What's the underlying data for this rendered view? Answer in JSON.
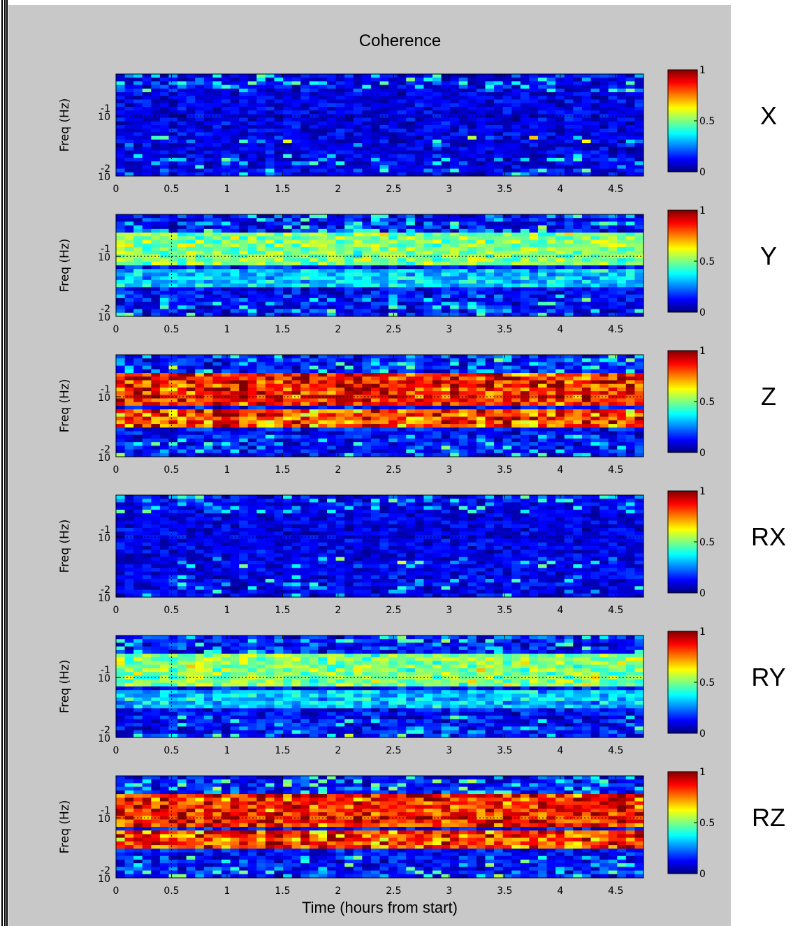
{
  "figure": {
    "title": "Coherence",
    "xlabel": "Time (hours from start)"
  },
  "chart_data": [
    {
      "type": "heatmap",
      "row_label": "X",
      "title": "",
      "xlabel": "",
      "ylabel": "Freq (Hz)",
      "xlim": [
        0,
        4.75
      ],
      "ylim": [
        0.01,
        0.5
      ],
      "yscale": "log",
      "xticks": [
        "0",
        "0.5",
        "1",
        "1.5",
        "2",
        "2.5",
        "3",
        "3.5",
        "4",
        "4.5"
      ],
      "yticks": [
        {
          "base": "10",
          "exp": "-2"
        },
        {
          "base": "10",
          "exp": "-1"
        }
      ],
      "colorbar": {
        "ticks": [
          "0",
          "0.5",
          "1"
        ],
        "range": [
          0,
          1
        ],
        "colormap": "jet"
      },
      "profile": {
        "broadband": 0.15,
        "band_low": 0.0,
        "band_high": 0.0,
        "seed": 3
      }
    },
    {
      "type": "heatmap",
      "row_label": "Y",
      "title": "",
      "xlabel": "",
      "ylabel": "Freq (Hz)",
      "xlim": [
        0,
        4.75
      ],
      "ylim": [
        0.01,
        0.5
      ],
      "yscale": "log",
      "xticks": [
        "0",
        "0.5",
        "1",
        "1.5",
        "2",
        "2.5",
        "3",
        "3.5",
        "4",
        "4.5"
      ],
      "yticks": [
        {
          "base": "10",
          "exp": "-2"
        },
        {
          "base": "10",
          "exp": "-1"
        }
      ],
      "colorbar": {
        "ticks": [
          "0",
          "0.5",
          "1"
        ],
        "range": [
          0,
          1
        ],
        "colormap": "jet"
      },
      "profile": {
        "broadband": 0.2,
        "band_low": 0.25,
        "band_high": 0.45,
        "seed": 7
      }
    },
    {
      "type": "heatmap",
      "row_label": "Z",
      "title": "",
      "xlabel": "",
      "ylabel": "Freq (Hz)",
      "xlim": [
        0,
        4.75
      ],
      "ylim": [
        0.01,
        0.5
      ],
      "yscale": "log",
      "xticks": [
        "0",
        "0.5",
        "1",
        "1.5",
        "2",
        "2.5",
        "3",
        "3.5",
        "4",
        "4.5"
      ],
      "yticks": [
        {
          "base": "10",
          "exp": "-2"
        },
        {
          "base": "10",
          "exp": "-1"
        }
      ],
      "colorbar": {
        "ticks": [
          "0",
          "0.5",
          "1"
        ],
        "range": [
          0,
          1
        ],
        "colormap": "jet"
      },
      "profile": {
        "broadband": 0.2,
        "band_low": 0.85,
        "band_high": 0.85,
        "seed": 11
      }
    },
    {
      "type": "heatmap",
      "row_label": "RX",
      "title": "",
      "xlabel": "",
      "ylabel": "Freq (Hz)",
      "xlim": [
        0,
        4.75
      ],
      "ylim": [
        0.01,
        0.5
      ],
      "yscale": "log",
      "xticks": [
        "0",
        "0.5",
        "1",
        "1.5",
        "2",
        "2.5",
        "3",
        "3.5",
        "4",
        "4.5"
      ],
      "yticks": [
        {
          "base": "10",
          "exp": "-2"
        },
        {
          "base": "10",
          "exp": "-1"
        }
      ],
      "colorbar": {
        "ticks": [
          "0",
          "0.5",
          "1"
        ],
        "range": [
          0,
          1
        ],
        "colormap": "jet"
      },
      "profile": {
        "broadband": 0.15,
        "band_low": 0.0,
        "band_high": 0.0,
        "seed": 5
      }
    },
    {
      "type": "heatmap",
      "row_label": "RY",
      "title": "",
      "xlabel": "",
      "ylabel": "Freq (Hz)",
      "xlim": [
        0,
        4.75
      ],
      "ylim": [
        0.01,
        0.5
      ],
      "yscale": "log",
      "xticks": [
        "0",
        "0.5",
        "1",
        "1.5",
        "2",
        "2.5",
        "3",
        "3.5",
        "4",
        "4.5"
      ],
      "yticks": [
        {
          "base": "10",
          "exp": "-2"
        },
        {
          "base": "10",
          "exp": "-1"
        }
      ],
      "colorbar": {
        "ticks": [
          "0",
          "0.5",
          "1"
        ],
        "range": [
          0,
          1
        ],
        "colormap": "jet"
      },
      "profile": {
        "broadband": 0.2,
        "band_low": 0.25,
        "band_high": 0.45,
        "seed": 9
      }
    },
    {
      "type": "heatmap",
      "row_label": "RZ",
      "title": "",
      "xlabel": "Time (hours from start)",
      "ylabel": "Freq (Hz)",
      "xlim": [
        0,
        4.75
      ],
      "ylim": [
        0.01,
        0.5
      ],
      "yscale": "log",
      "xticks": [
        "0",
        "0.5",
        "1",
        "1.5",
        "2",
        "2.5",
        "3",
        "3.5",
        "4",
        "4.5"
      ],
      "yticks": [
        {
          "base": "10",
          "exp": "-2"
        },
        {
          "base": "10",
          "exp": "-1"
        }
      ],
      "colorbar": {
        "ticks": [
          "0",
          "0.5",
          "1"
        ],
        "range": [
          0,
          1
        ],
        "colormap": "jet"
      },
      "profile": {
        "broadband": 0.2,
        "band_low": 0.85,
        "band_high": 0.85,
        "seed": 13
      }
    }
  ]
}
